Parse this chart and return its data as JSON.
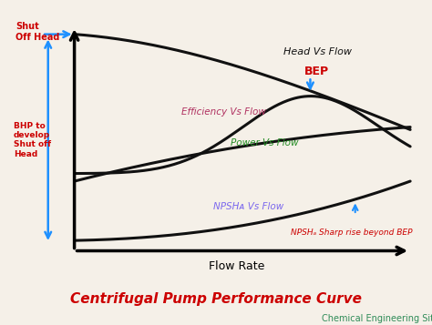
{
  "title": "Centrifugal Pump Performance Curve",
  "subtitle": "Chemical Engineering Site",
  "xlabel": "Flow Rate",
  "bg_color": "#f5f0e8",
  "title_color": "#cc0000",
  "subtitle_color": "#2e8b57",
  "curve_color": "#111111",
  "head_label": "Head Vs Flow",
  "efficiency_label": "Efficiency Vs Flow",
  "power_label": "Power Vs Flow",
  "npshr_label": "NPSHᴀ Vs Flow",
  "bep_label": "BEP",
  "shut_off_head_label": "Shut\nOff Head",
  "bhp_label": "BHP to\ndevelop\nShut off\nHead",
  "npshr_note": "NPSHₐ Sharp rise beyond BEP",
  "head_color": "#111111",
  "efficiency_color": "#b03060",
  "power_color": "#228b22",
  "npshr_color": "#7b68ee",
  "bep_color": "#cc0000",
  "annotation_color": "#cc0000",
  "arrow_color": "#1e90ff"
}
